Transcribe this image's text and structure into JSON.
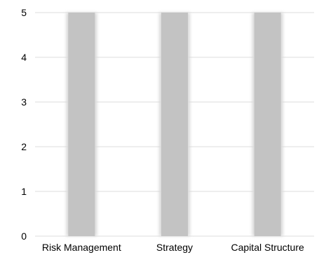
{
  "chart_data": {
    "type": "bar",
    "categories": [
      "Risk Management",
      "Strategy",
      "Capital Structure"
    ],
    "values": [
      5,
      5,
      5
    ],
    "title": "",
    "xlabel": "",
    "ylabel": "",
    "ylim": [
      0,
      5
    ],
    "yticks": [
      0,
      1,
      2,
      3,
      4,
      5
    ],
    "grid": true,
    "legend": "none",
    "colors": {
      "bar": "#c3c3c3",
      "bar_shadow": "#d9d9d9",
      "grid": "#dcdcdc",
      "text": "#000000"
    }
  }
}
